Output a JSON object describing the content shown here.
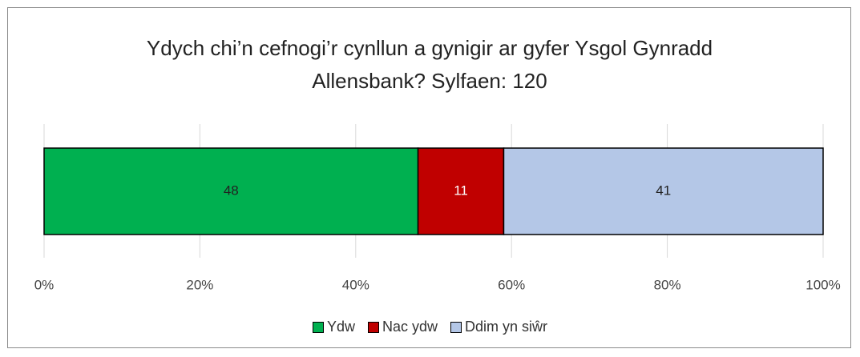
{
  "chart_data": {
    "type": "stacked_bar_horizontal",
    "title": "Ydych chi’n cefnogi’r cynllun a gynigir ar gyfer Ysgol Gynradd Allensbank? Sylfaen: 120",
    "categories": [
      null
    ],
    "series": [
      {
        "name": "Ydw",
        "color": "#00b050",
        "label_color": "#222222",
        "values": [
          48
        ]
      },
      {
        "name": "Nac ydw",
        "color": "#c00000",
        "label_color": "#ffffff",
        "values": [
          11
        ]
      },
      {
        "name": "Ddim yn siŵr",
        "color": "#b4c7e7",
        "label_color": "#222222",
        "values": [
          41
        ]
      }
    ],
    "xlim": [
      0,
      100
    ],
    "xticks": [
      {
        "value": 0,
        "label": "0%"
      },
      {
        "value": 20,
        "label": "20%"
      },
      {
        "value": 40,
        "label": "40%"
      },
      {
        "value": 60,
        "label": "60%"
      },
      {
        "value": 80,
        "label": "80%"
      },
      {
        "value": 100,
        "label": "100%"
      }
    ],
    "grid": true,
    "legend": "bottom"
  }
}
